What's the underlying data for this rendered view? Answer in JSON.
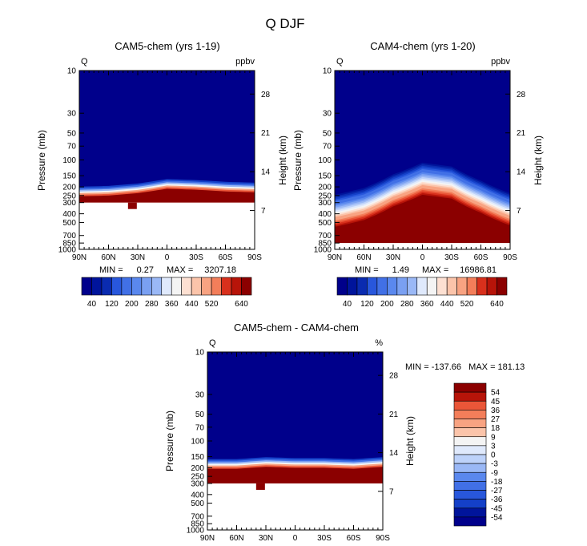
{
  "figure_title": "Q DJF",
  "lat_ticks": [
    "90N",
    "60N",
    "30N",
    "0",
    "30S",
    "60S",
    "90S"
  ],
  "pressure_ticks": [
    "10",
    "30",
    "50",
    "70",
    "100",
    "150",
    "200",
    "250",
    "300",
    "400",
    "500",
    "700",
    "850",
    "1000"
  ],
  "pressure_values": [
    10,
    30,
    50,
    70,
    100,
    150,
    200,
    250,
    300,
    400,
    500,
    700,
    850,
    1000
  ],
  "height_ticks": [
    "28",
    "21",
    "14",
    "7"
  ],
  "height_values_km": [
    28,
    21,
    14,
    7
  ],
  "colors": {
    "low": "#00008b",
    "high": "#8b0000",
    "ramp": [
      "#00008b",
      "#00149b",
      "#0a2bb0",
      "#1440c8",
      "#2857dc",
      "#4170e6",
      "#5a88ee",
      "#7aa0f2",
      "#9ab8f6",
      "#bdd2fa",
      "#dfe9fc",
      "#f4f4f4",
      "#fde0d2",
      "#fbc4aa",
      "#f8a382",
      "#f37e5a",
      "#ea5638",
      "#d8301c",
      "#b71409",
      "#8b0000"
    ]
  },
  "panels": [
    {
      "title": "CAM5-chem (yrs 1-19)",
      "left_label": "Q",
      "right_label": "ppbv",
      "ylabel": "Pressure (mb)",
      "ylabel_right": "Height (km)",
      "min_label": "MIN =",
      "min_value": "0.27",
      "max_label": "MAX =",
      "max_value": "3207.18",
      "colorbar_ticks": [
        "40",
        "120",
        "200",
        "280",
        "360",
        "440",
        "520",
        "640"
      ]
    },
    {
      "title": "CAM4-chem (yrs 1-20)",
      "left_label": "Q",
      "right_label": "ppbv",
      "ylabel": "Pressure (mb)",
      "ylabel_right": "Height (km)",
      "min_label": "MIN =",
      "min_value": "1.49",
      "max_label": "MAX =",
      "max_value": "16986.81",
      "colorbar_ticks": [
        "40",
        "120",
        "200",
        "280",
        "360",
        "440",
        "520",
        "640"
      ]
    },
    {
      "title": "CAM5-chem - CAM4-chem",
      "left_label": "Q",
      "right_label": "%",
      "ylabel": "Pressure (mb)",
      "ylabel_right": "Height (km)",
      "minmax_text": "MIN = -137.66   MAX = 181.13",
      "colorbar_ticks": [
        "54",
        "45",
        "36",
        "27",
        "18",
        "9",
        "3",
        "0",
        "-3",
        "-9",
        "-18",
        "-27",
        "-36",
        "-45",
        "-54"
      ]
    }
  ],
  "chart_data": [
    {
      "type": "heatmap",
      "title": "CAM5-chem (yrs 1-19)",
      "xlabel": "",
      "ylabel": "Pressure (mb)",
      "units": "ppbv",
      "x_categories": [
        "90N",
        "60N",
        "30N",
        "0",
        "30S",
        "60S",
        "90S"
      ],
      "ylim": [
        1000,
        10
      ],
      "contour_levels": [
        40,
        80,
        120,
        160,
        200,
        240,
        280,
        320,
        360,
        400,
        440,
        480,
        520,
        560,
        600,
        640
      ],
      "min": 0.27,
      "max": 3207.18,
      "transition_pressure_mb": {
        "lat": [
          90,
          60,
          30,
          0,
          -30,
          -60,
          -90
        ],
        "p": [
          255,
          250,
          235,
          210,
          215,
          225,
          230
        ]
      },
      "data_floor_mb": 300
    },
    {
      "type": "heatmap",
      "title": "CAM4-chem (yrs 1-20)",
      "xlabel": "",
      "ylabel": "Pressure (mb)",
      "units": "ppbv",
      "x_categories": [
        "90N",
        "60N",
        "30N",
        "0",
        "30S",
        "60S",
        "90S"
      ],
      "ylim": [
        1000,
        10
      ],
      "contour_levels": [
        40,
        80,
        120,
        160,
        200,
        240,
        280,
        320,
        360,
        400,
        440,
        480,
        520,
        560,
        600,
        640
      ],
      "min": 1.49,
      "max": 16986.81,
      "transition_pressure_mb": {
        "lat": [
          90,
          60,
          30,
          0,
          -30,
          -60,
          -90
        ],
        "p": [
          560,
          470,
          330,
          245,
          270,
          390,
          540
        ]
      },
      "data_floor_mb": 850
    },
    {
      "type": "heatmap",
      "title": "CAM5-chem - CAM4-chem",
      "xlabel": "",
      "ylabel": "Pressure (mb)",
      "units": "%",
      "x_categories": [
        "90N",
        "60N",
        "30N",
        "0",
        "30S",
        "60S",
        "90S"
      ],
      "ylim": [
        1000,
        10
      ],
      "contour_levels": [
        -54,
        -45,
        -36,
        -27,
        -18,
        -9,
        -3,
        0,
        3,
        9,
        18,
        27,
        36,
        45,
        54
      ],
      "min": -137.66,
      "max": 181.13,
      "transition_pressure_mb": {
        "lat": [
          90,
          60,
          30,
          0,
          -30,
          -60,
          -90
        ],
        "p": [
          205,
          205,
          195,
          200,
          200,
          205,
          195
        ]
      },
      "data_floor_mb": 300
    }
  ]
}
